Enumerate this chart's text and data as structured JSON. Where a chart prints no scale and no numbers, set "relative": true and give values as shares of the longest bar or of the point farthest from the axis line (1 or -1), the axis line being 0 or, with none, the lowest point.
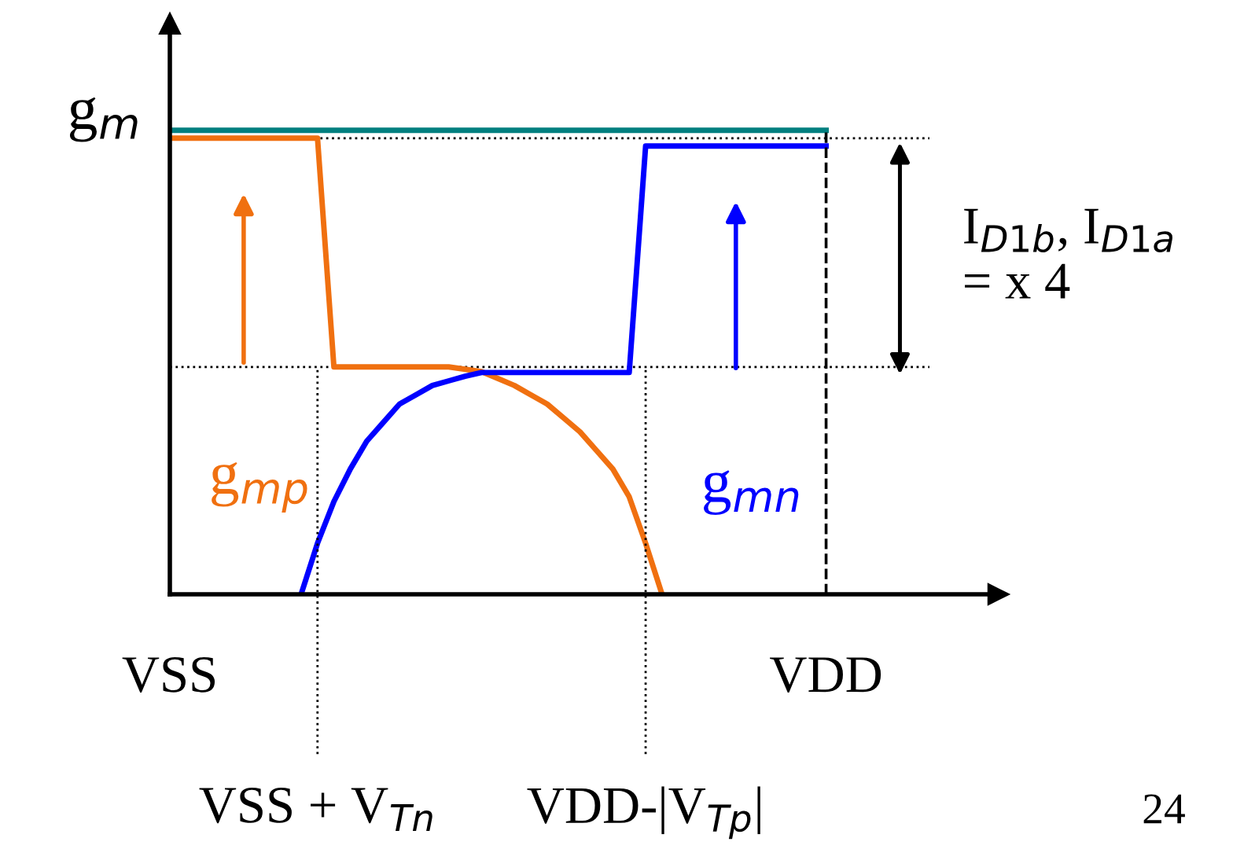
{
  "chart_data": {
    "type": "line",
    "relative": true,
    "ylabel": "g$_{m}$",
    "grid": "x",
    "legend": false,
    "categories": [
      "VSS",
      null,
      null,
      null,
      null,
      null,
      null,
      null,
      null,
      "VSS + V$_{Tn}$",
      null,
      null,
      null,
      null,
      null,
      null,
      null,
      null,
      null,
      null,
      null,
      null,
      null,
      null,
      null,
      null,
      null,
      null,
      null,
      "VDD-|V$_{Tp}$|",
      null,
      null,
      null,
      null,
      null,
      null,
      null,
      null,
      null,
      null,
      "VDD"
    ],
    "series": [
      {
        "color": "#007f7f",
        "values": [
          1,
          1,
          1,
          1,
          1,
          1,
          1,
          1,
          1,
          1,
          1,
          1,
          1,
          1,
          1,
          1,
          1,
          1,
          1,
          1,
          1,
          1,
          1,
          1,
          1,
          1,
          1,
          1,
          1,
          1,
          1,
          1,
          1,
          1,
          1,
          1,
          1,
          1,
          1,
          1,
          1
        ]
      },
      {
        "name": "g$_{mp}$",
        "color": "#f07010",
        "values": [
          0.983,
          0.983,
          0.983,
          0.983,
          0.983,
          0.983,
          0.983,
          0.983,
          0.983,
          0.983,
          0.49,
          0.49,
          0.49,
          0.49,
          0.49,
          0.49,
          0.49,
          0.49,
          0.485,
          0.48,
          0.465,
          0.45,
          0.43,
          0.41,
          0.38,
          0.35,
          0.31,
          0.27,
          0.21,
          0.11,
          0.0,
          null,
          null,
          null,
          null,
          null,
          null,
          null,
          null,
          null,
          null
        ]
      },
      {
        "name": "g$_{mn}$",
        "color": "#0000ff",
        "values": [
          null,
          null,
          null,
          null,
          null,
          null,
          null,
          null,
          0.0,
          0.11,
          0.2,
          0.27,
          0.33,
          0.37,
          0.41,
          0.43,
          0.45,
          0.46,
          0.47,
          0.478,
          0.478,
          0.478,
          0.478,
          0.478,
          0.478,
          0.478,
          0.478,
          0.478,
          0.478,
          0.966,
          0.966,
          0.966,
          0.966,
          0.966,
          0.966,
          0.966,
          0.966,
          0.966,
          0.966,
          0.966,
          0.966
        ]
      }
    ],
    "ref_lines": [
      {
        "axis": "y",
        "value": 0.983,
        "line_style": "dotted"
      },
      {
        "axis": "y",
        "value": 0.49,
        "line_style": "dotted"
      }
    ],
    "annotations": [
      "I$_{D1b}$, I$_{D1a}$\n= x 4",
      "24"
    ]
  }
}
